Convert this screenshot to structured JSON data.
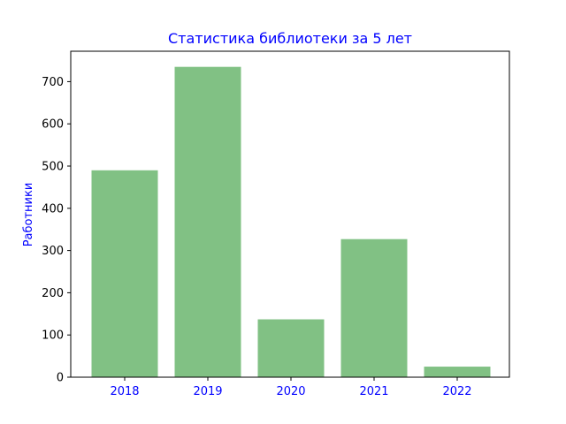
{
  "chart_data": {
    "type": "bar",
    "title": "Статистика библиотеки за 5 лет",
    "xlabel": "",
    "ylabel": "Работники",
    "categories": [
      "2018",
      "2019",
      "2020",
      "2021",
      "2022"
    ],
    "values": [
      490,
      735,
      137,
      327,
      25
    ],
    "ylim": [
      0,
      772
    ],
    "yticks": [
      0,
      100,
      200,
      300,
      400,
      500,
      600,
      700
    ],
    "grid": false,
    "colors": {
      "bar": "#81c184",
      "title": "#0000ff",
      "ylabel": "#0000ff",
      "xtick_labels": "#0000ff",
      "ytick_labels": "#000000",
      "axes": "#000000"
    }
  }
}
